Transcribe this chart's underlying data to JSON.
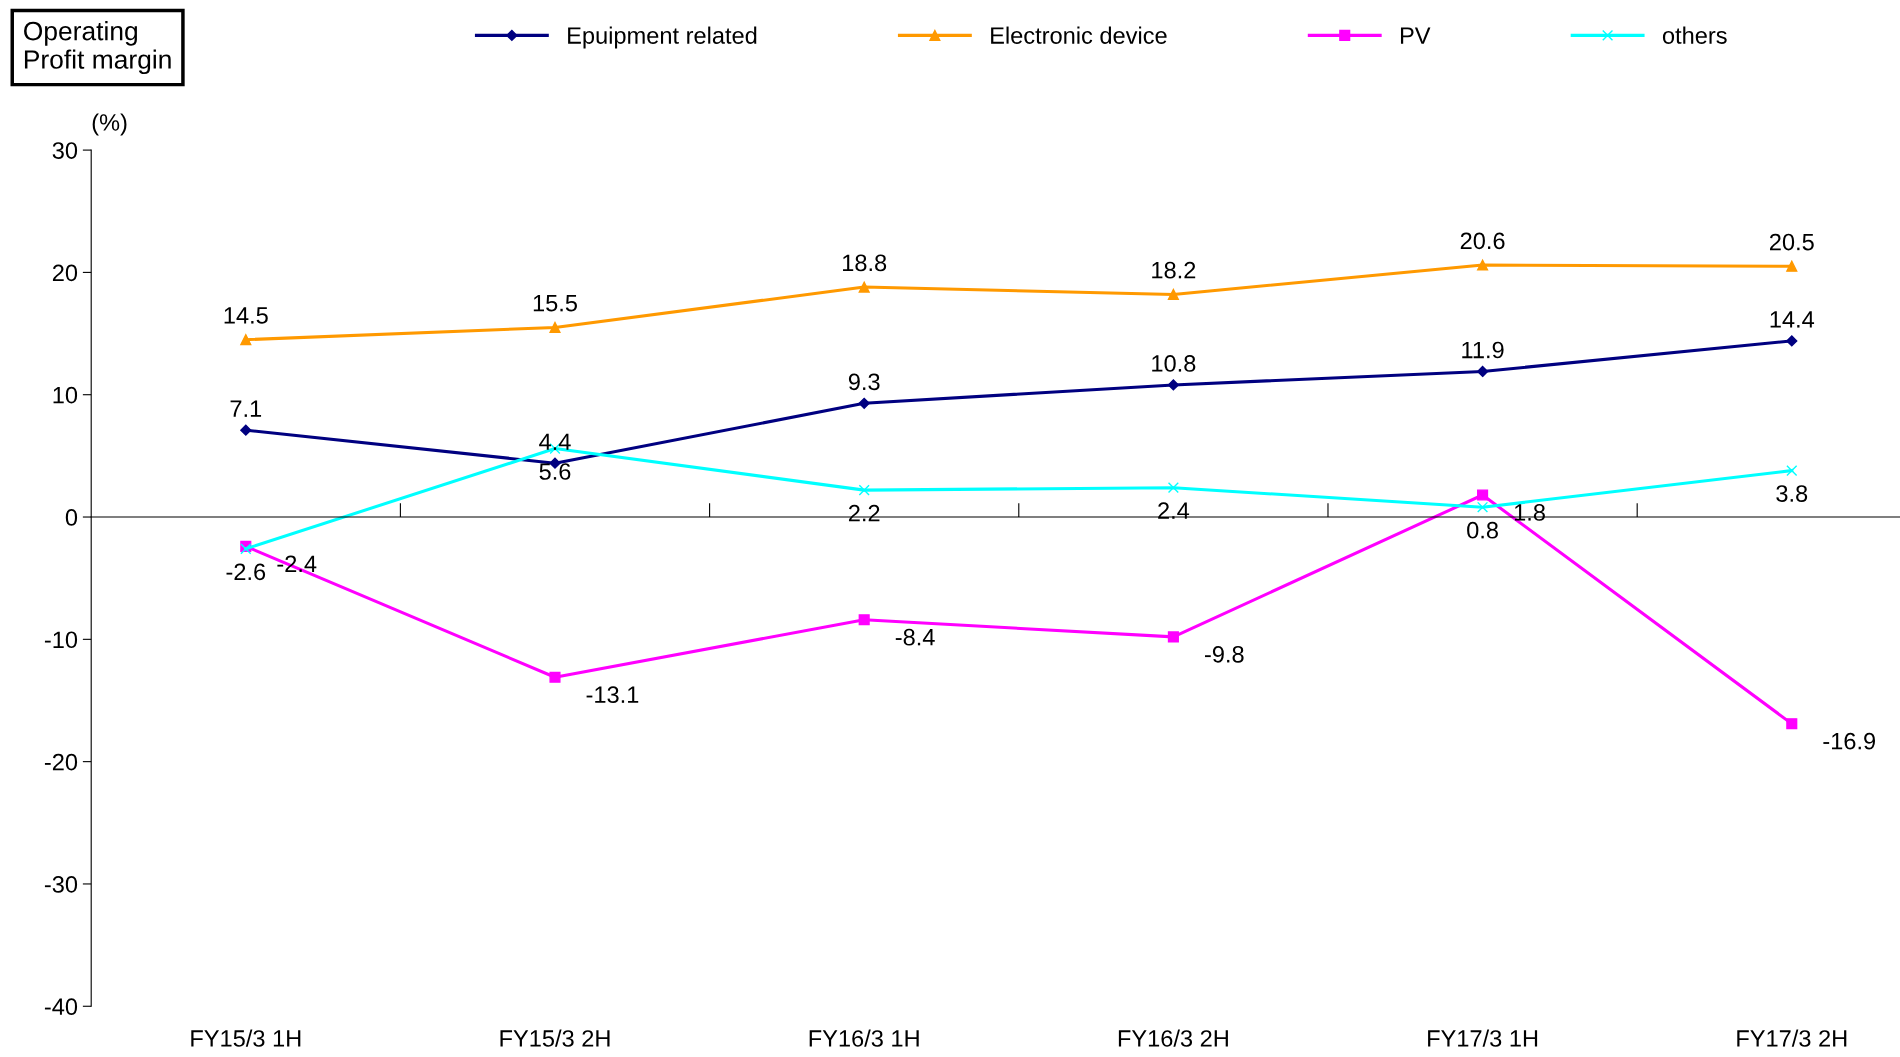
{
  "chart_data": {
    "type": "line",
    "title": "Operating\nProfit margin",
    "ylabel": "(%)",
    "categories": [
      "FY15/3 1H",
      "FY15/3 2H",
      "FY16/3 1H",
      "FY16/3 2H",
      "FY17/3 1H",
      "FY17/3 2H"
    ],
    "series": [
      {
        "name": "Epuipment related",
        "color": "#000080",
        "marker": "diamond",
        "values": [
          7.1,
          4.4,
          9.3,
          10.8,
          11.9,
          14.4
        ]
      },
      {
        "name": "Electronic device",
        "color": "#ff9900",
        "marker": "triangle",
        "values": [
          14.5,
          15.5,
          18.8,
          18.2,
          20.6,
          20.5
        ]
      },
      {
        "name": "PV",
        "color": "#ff00ff",
        "marker": "square",
        "values": [
          -2.4,
          -13.1,
          -8.4,
          -9.8,
          1.8,
          -16.9
        ]
      },
      {
        "name": "others",
        "color": "#00ffff",
        "marker": "cross",
        "values": [
          -2.6,
          5.6,
          2.2,
          2.4,
          0.8,
          3.8
        ]
      }
    ],
    "ylim": [
      -40,
      30
    ],
    "yticks": [
      -40,
      -30,
      -20,
      -10,
      0,
      10,
      20,
      30
    ],
    "data_labels": true,
    "legend": "top"
  }
}
